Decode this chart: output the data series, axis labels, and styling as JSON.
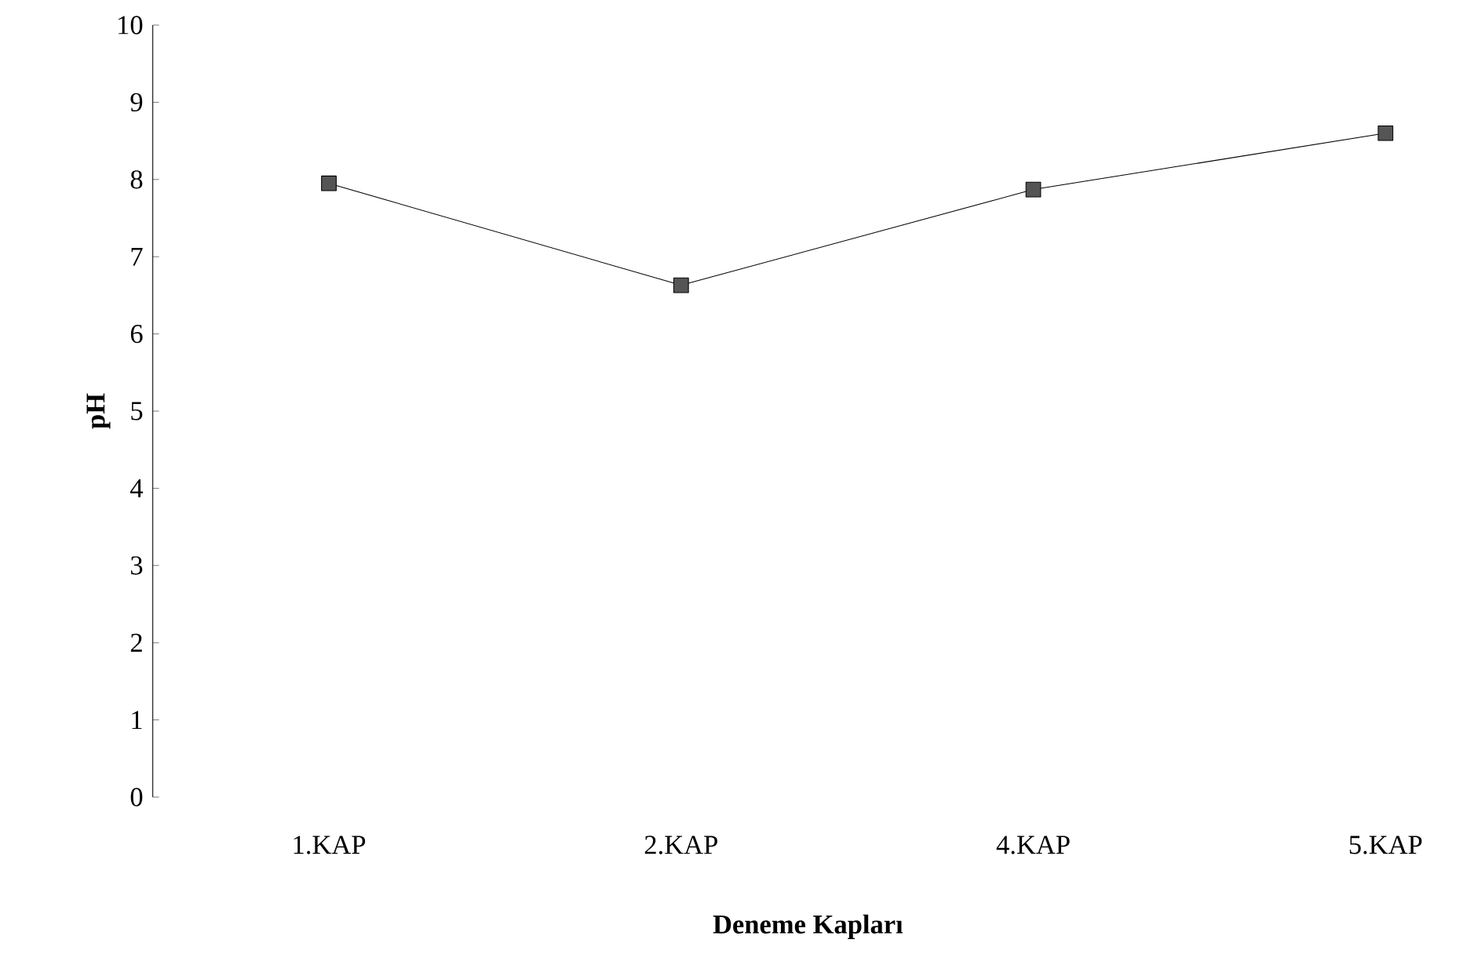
{
  "chart_data": {
    "type": "line",
    "xlabel": "Deneme Kapları",
    "ylabel": "pH",
    "categories": [
      "1.KAP",
      "2.KAP",
      "4.KAP",
      "5.KAP"
    ],
    "series": [
      {
        "color": "#555555",
        "values": [
          7.95,
          6.63,
          7.87,
          8.6
        ]
      }
    ],
    "ylim": [
      0,
      10
    ],
    "yticks": [
      0,
      1,
      2,
      3,
      4,
      5,
      6,
      7,
      8,
      9,
      10
    ],
    "marker": "square",
    "line_style": "solid"
  }
}
